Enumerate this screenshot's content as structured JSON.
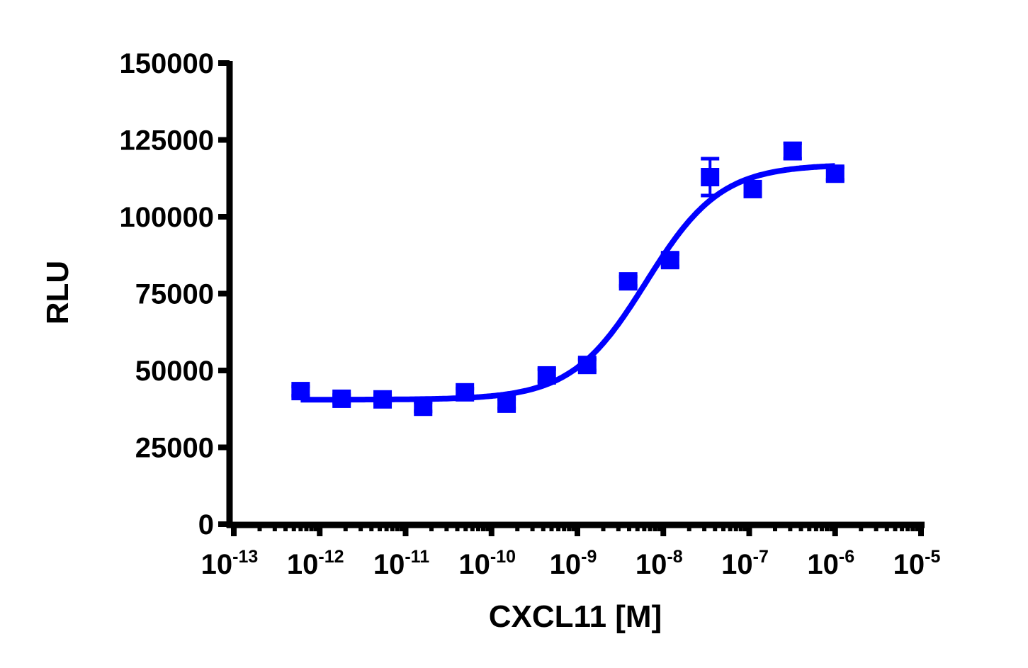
{
  "chart_data": {
    "type": "scatter",
    "title": "",
    "xlabel": "CXCL11 [M]",
    "ylabel": "RLU",
    "xscale": "log",
    "xlim": [
      1e-13,
      1e-05
    ],
    "ylim": [
      0,
      150000
    ],
    "grid": false,
    "legend": null,
    "x_ticks": [
      {
        "base": "10",
        "exp": "-13",
        "value": 1e-13
      },
      {
        "base": "10",
        "exp": "-12",
        "value": 1e-12
      },
      {
        "base": "10",
        "exp": "-11",
        "value": 1e-11
      },
      {
        "base": "10",
        "exp": "-10",
        "value": 1e-10
      },
      {
        "base": "10",
        "exp": "-9",
        "value": 1e-09
      },
      {
        "base": "10",
        "exp": "-8",
        "value": 1e-08
      },
      {
        "base": "10",
        "exp": "-7",
        "value": 1e-07
      },
      {
        "base": "10",
        "exp": "-6",
        "value": 1e-06
      },
      {
        "base": "10",
        "exp": "-5",
        "value": 1e-05
      }
    ],
    "y_ticks": [
      "0",
      "25000",
      "50000",
      "75000",
      "100000",
      "125000",
      "150000"
    ],
    "y_tick_values": [
      0,
      25000,
      50000,
      75000,
      100000,
      125000,
      150000
    ],
    "series": [
      {
        "name": "CXCL11",
        "color": "#0000ff",
        "marker": "square",
        "x": [
          6e-13,
          1.8e-12,
          5.4e-12,
          1.6e-11,
          4.9e-11,
          1.5e-10,
          4.4e-10,
          1.3e-09,
          3.9e-09,
          1.2e-08,
          3.5e-08,
          1.1e-07,
          3.2e-07,
          1e-06
        ],
        "y": [
          43300,
          40800,
          40600,
          38200,
          42900,
          39200,
          48400,
          51800,
          79000,
          85900,
          112900,
          109000,
          121400,
          114000
        ],
        "error": [
          1500,
          1200,
          1200,
          1500,
          1200,
          1500,
          2000,
          1800,
          1500,
          2000,
          6000,
          1500,
          2500,
          2000
        ]
      }
    ],
    "fit": {
      "type": "sigmoidal dose-response (4PL)",
      "bottom": 40500,
      "top": 117000,
      "log_ec50": -8.2,
      "hill_slope": 1.0,
      "color": "#0000ff"
    }
  }
}
